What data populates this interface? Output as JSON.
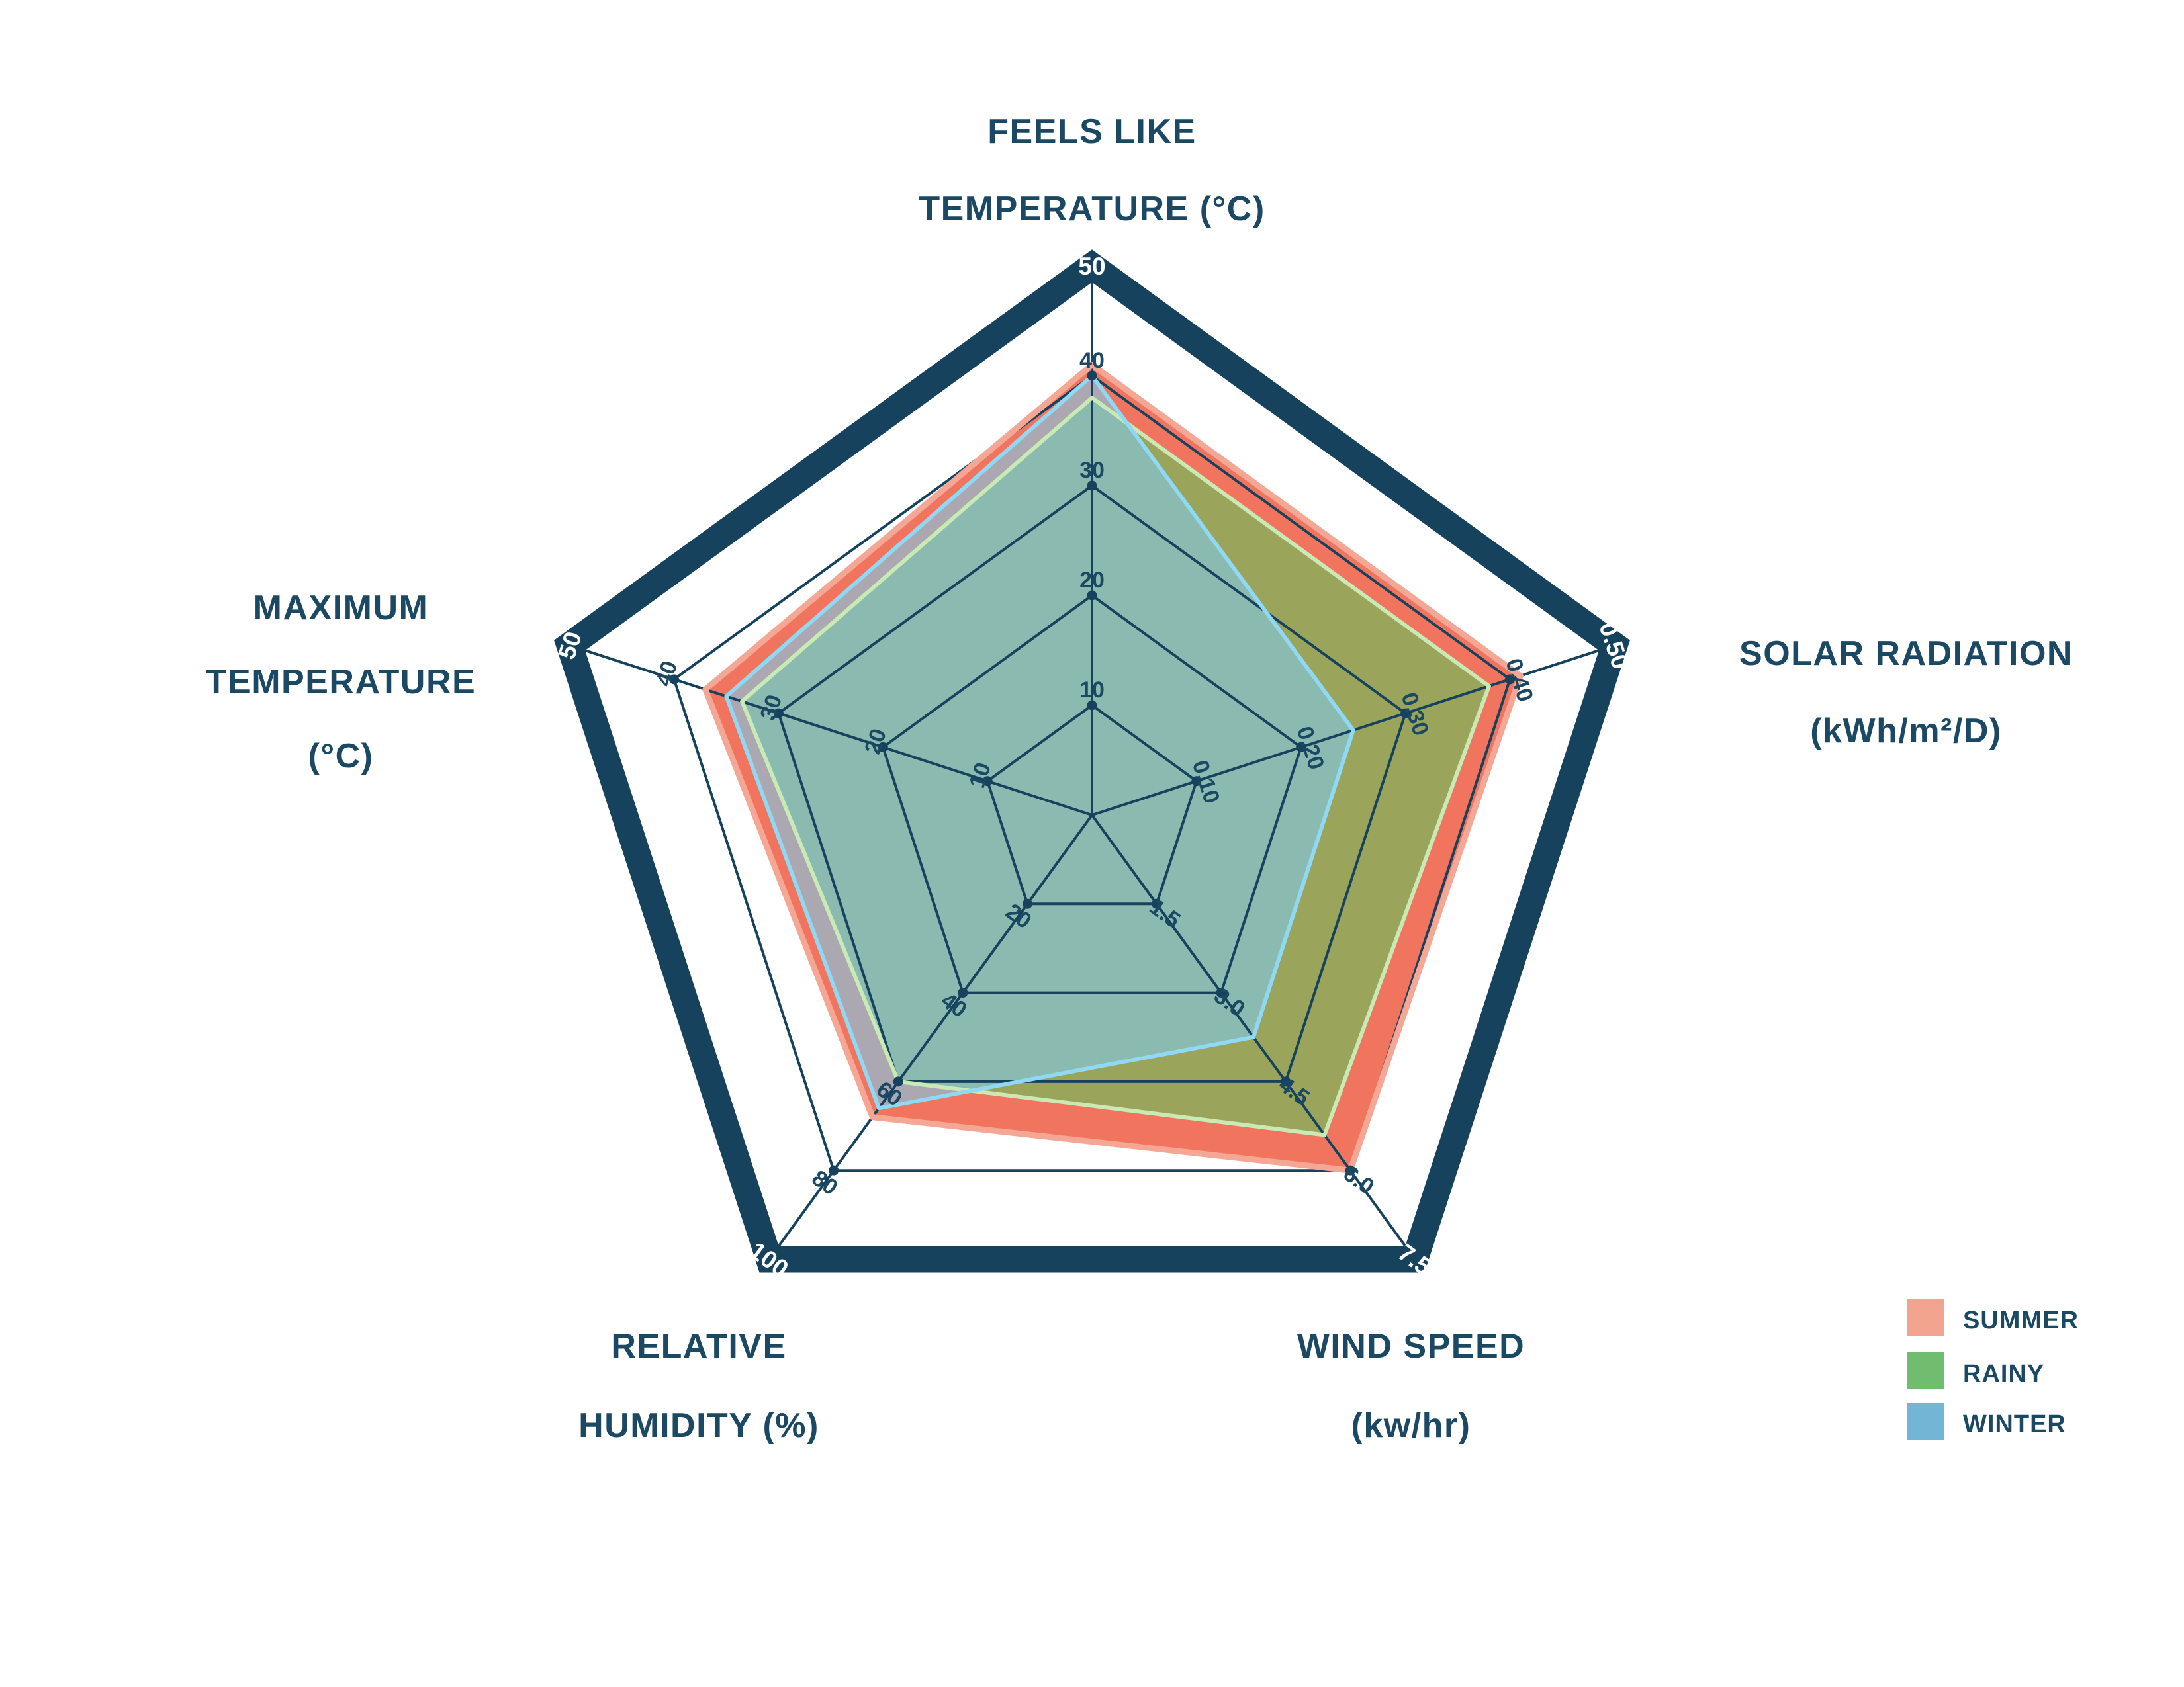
{
  "chart_data": {
    "type": "radar",
    "shape": "pentagon",
    "background": "#FFFFFF",
    "axes": [
      {
        "id": "feels-like-temperature",
        "title_lines": [
          "FEELS LIKE",
          "TEMPERATURE (°C)"
        ],
        "max": 50,
        "ticks": [
          "10",
          "20",
          "30",
          "40"
        ],
        "outer_tick": "50"
      },
      {
        "id": "solar-radiation",
        "title_lines": [
          "SOLAR RADIATION",
          "(kWh/m²/D)"
        ],
        "max": 0.5,
        "ticks": [
          "0.10",
          "0.20",
          "0.30",
          "0.40"
        ],
        "outer_tick": "0.50"
      },
      {
        "id": "wind-speed",
        "title_lines": [
          "WIND SPEED",
          "(kw/hr)"
        ],
        "max": 7.5,
        "ticks": [
          "1.5",
          "3.0",
          "4.5",
          "6.0"
        ],
        "outer_tick": "7.5"
      },
      {
        "id": "relative-humidity",
        "title_lines": [
          "RELATIVE",
          "HUMIDITY (%)"
        ],
        "max": 100,
        "ticks": [
          "20",
          "40",
          "60",
          "80"
        ],
        "outer_tick": "100"
      },
      {
        "id": "maximum-temperature",
        "title_lines": [
          "MAXIMUM",
          "TEMPERATURE",
          "(°C)"
        ],
        "max": 50,
        "ticks": [
          "10",
          "20",
          "30",
          "40"
        ],
        "outer_tick": "50"
      }
    ],
    "series": [
      {
        "name": "SUMMER",
        "values": [
          41,
          0.41,
          6.0,
          68,
          37
        ],
        "fill": "#ED553B",
        "fill_opacity": 0.82,
        "stroke": "#F5A795",
        "legend_color": "#F2A490"
      },
      {
        "name": "RAINY",
        "values": [
          38,
          0.38,
          5.4,
          60,
          33.5
        ],
        "fill": "#6FBD5A",
        "fill_opacity": 0.66,
        "stroke": "#C9EAB5",
        "legend_color": "#71BD6F"
      },
      {
        "name": "WINTER",
        "values": [
          40,
          0.25,
          3.75,
          66,
          35
        ],
        "fill": "#81C8E7",
        "fill_opacity": 0.62,
        "stroke": "#8FD9F4",
        "legend_color": "#72B5D4"
      }
    ],
    "grid": {
      "levels": 5,
      "line_color": "#16425E",
      "border_color": "#16425E",
      "tick_label_color": "#1B4863",
      "outer_tick_label_color": "#FFFFFF"
    },
    "legend": {
      "position": "bottom-right"
    }
  }
}
